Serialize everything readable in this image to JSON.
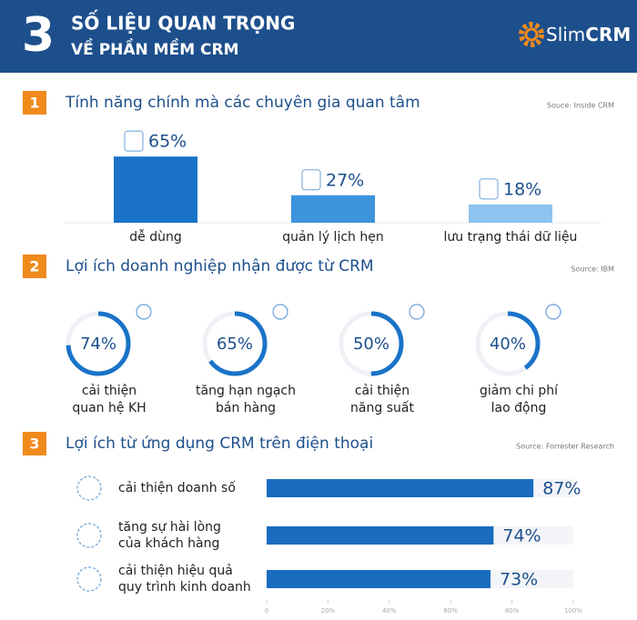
{
  "header": {
    "number": "3",
    "title_line1": "SỐ LIỆU QUAN TRỌNG",
    "title_line2": "VỀ PHẦN MỀM CRM",
    "logo_prefix": "Slim",
    "logo_suffix": "CRM"
  },
  "chart_data": [
    {
      "type": "bar",
      "number": "1",
      "title": "Tính năng chính mà các chuyên gia quan tâm",
      "source": "Souce: Inside CRM",
      "categories": [
        "dễ dùng",
        "quản lý lịch hẹn",
        "lưu trạng thái dữ liệu"
      ],
      "values": [
        65,
        27,
        18
      ],
      "value_labels": [
        "65%",
        "27%",
        "18%"
      ],
      "colors": [
        "#1a73c8",
        "#3d93dc",
        "#8cc4ef"
      ]
    },
    {
      "type": "donut",
      "number": "2",
      "title": "Lợi ích doanh nghiệp nhận được từ CRM",
      "source": "Source: IBM",
      "categories": [
        "cải thiện\nquan hệ KH",
        "tăng hạn ngạch\nbán hàng",
        "cải thiện\nnăng suất",
        "giảm chi phí\nlao động"
      ],
      "values": [
        74,
        65,
        50,
        40
      ],
      "value_labels": [
        "74%",
        "65%",
        "50%",
        "40%"
      ],
      "color": "#1a73c8"
    },
    {
      "type": "hbar",
      "number": "3",
      "title": "Lợi ích từ ứng dụng CRM trên điện thoại",
      "source": "Source: Forrester Research",
      "categories": [
        "cải thiện doanh số",
        "tăng sự hài lòng\ncủa khách hàng",
        "cải thiện hiệu quả\nquy trình kinh doanh"
      ],
      "values": [
        87,
        74,
        73
      ],
      "value_labels": [
        "87%",
        "74%",
        "73%"
      ],
      "color": "#1a6cc0",
      "xlim": [
        0,
        100
      ],
      "xticks": [
        0,
        {
          "value": 20,
          "label": "20%"
        },
        {
          "value": 40,
          "label": "40%"
        },
        {
          "value": 60,
          "label": "60%"
        },
        {
          "value": 80,
          "label": "80%"
        },
        {
          "value": 100,
          "label": "100%"
        }
      ]
    }
  ]
}
